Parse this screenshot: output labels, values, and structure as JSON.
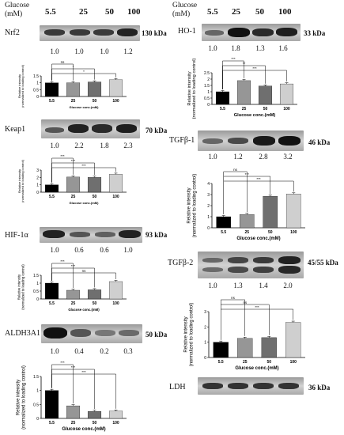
{
  "header": {
    "glucose_label": "Glucose",
    "unit_label": "(mM)",
    "concentrations": [
      "5.5",
      "25",
      "50",
      "100"
    ]
  },
  "blots": [
    {
      "name": "Nrf2",
      "mw": "130 kDa",
      "ratios": [
        "1.0",
        "1.0",
        "1.0",
        "1.2"
      ],
      "intensity": [
        1.0,
        1.0,
        1.0,
        1.2
      ]
    },
    {
      "name": "Keap1",
      "mw": "70 kDa",
      "ratios": [
        "1.0",
        "2.2",
        "1.8",
        "2.3"
      ],
      "intensity": [
        1.0,
        2.2,
        1.8,
        2.3
      ]
    },
    {
      "name": "HIF-1α",
      "mw": "93 kDa",
      "ratios": [
        "1.0",
        "0.6",
        "0.6",
        "1.0"
      ],
      "intensity": [
        1.0,
        0.6,
        0.6,
        1.0
      ]
    },
    {
      "name": "ALDH3A1",
      "mw": "50 kDa",
      "ratios": [
        "1.0",
        "0.4",
        "0.2",
        "0.3"
      ],
      "intensity": [
        1.0,
        0.4,
        0.2,
        0.3
      ]
    },
    {
      "name": "HO-1",
      "mw": "33 kDa",
      "ratios": [
        "1.0",
        "1.8",
        "1.3",
        "1.6"
      ],
      "intensity": [
        1.0,
        1.8,
        1.3,
        1.6
      ]
    },
    {
      "name": "TGFβ-1",
      "mw": "46 kDa",
      "ratios": [
        "1.0",
        "1.2",
        "2.8",
        "3.2"
      ],
      "intensity": [
        1.0,
        1.2,
        2.8,
        3.2
      ]
    },
    {
      "name": "TGFβ-2",
      "mw": "45/55 kDa",
      "ratios": [
        "1.0",
        "1.3",
        "1.4",
        "2.0"
      ],
      "intensity": [
        1.0,
        1.3,
        1.4,
        2.0
      ]
    },
    {
      "name": "LDH",
      "mw": "36 kDa",
      "ratios": [],
      "intensity": [
        1.0,
        1.0,
        1.0,
        1.0
      ]
    }
  ],
  "chart_data": [
    {
      "type": "bar",
      "panel": "Nrf2",
      "categories": [
        "5.5",
        "25",
        "50",
        "100"
      ],
      "values": [
        1.0,
        1.0,
        1.06,
        1.22
      ],
      "ylim": [
        0,
        1.5
      ],
      "yticks": [
        0,
        0.5,
        1,
        1.5
      ],
      "ylabel": "Relative intensity\n(normalized to loading control)",
      "xlabel": "Glucose conc.(mM)",
      "colors": [
        "#000000",
        "#969696",
        "#6f6f6f",
        "#cfcfcf"
      ],
      "significance": [
        {
          "from": 0,
          "to": 1,
          "label": "ns"
        },
        {
          "from": 0,
          "to": 2,
          "label": "*"
        },
        {
          "from": 0,
          "to": 3,
          "label": "*"
        }
      ]
    },
    {
      "type": "bar",
      "panel": "Keap1",
      "categories": [
        "5.5",
        "25",
        "50",
        "100"
      ],
      "values": [
        1.0,
        2.05,
        2.0,
        2.42
      ],
      "ylim": [
        0,
        3
      ],
      "yticks": [
        0,
        1,
        2,
        3
      ],
      "ylabel": "Relative intensity\n(normalized to loading control)",
      "xlabel": "Glucose conc.(mM)",
      "colors": [
        "#000000",
        "#969696",
        "#6f6f6f",
        "#cfcfcf"
      ],
      "significance": [
        {
          "from": 0,
          "to": 1,
          "label": "***"
        },
        {
          "from": 0,
          "to": 2,
          "label": "***"
        },
        {
          "from": 0,
          "to": 3,
          "label": "***"
        }
      ]
    },
    {
      "type": "bar",
      "panel": "HIF-1α",
      "categories": [
        "5.5",
        "25",
        "50",
        "100"
      ],
      "values": [
        1.0,
        0.55,
        0.58,
        1.1
      ],
      "ylim": [
        0,
        1.5
      ],
      "yticks": [
        0,
        0.5,
        1,
        1.5
      ],
      "ylabel": "Relative intensity\n(normalized to loading control)",
      "xlabel": "Glucose conc.(mM)",
      "colors": [
        "#000000",
        "#969696",
        "#6f6f6f",
        "#cfcfcf"
      ],
      "significance": [
        {
          "from": 0,
          "to": 1,
          "label": "***"
        },
        {
          "from": 0,
          "to": 2,
          "label": "***"
        },
        {
          "from": 0,
          "to": 3,
          "label": "ns"
        }
      ]
    },
    {
      "type": "bar",
      "panel": "ALDH3A1",
      "categories": [
        "5.5",
        "25",
        "50",
        "100"
      ],
      "values": [
        1.0,
        0.45,
        0.25,
        0.26
      ],
      "ylim": [
        0,
        1.5
      ],
      "yticks": [
        0,
        0.5,
        1,
        1.5
      ],
      "ylabel": "Relative intensity\n(normalized to loading control)",
      "xlabel": "Glucose conc.(mM)",
      "colors": [
        "#000000",
        "#969696",
        "#6f6f6f",
        "#cfcfcf"
      ],
      "significance": [
        {
          "from": 0,
          "to": 1,
          "label": "***"
        },
        {
          "from": 0,
          "to": 2,
          "label": "***"
        },
        {
          "from": 0,
          "to": 3,
          "label": "***"
        }
      ]
    },
    {
      "type": "bar",
      "panel": "HO-1",
      "categories": [
        "5.5",
        "25",
        "50",
        "100"
      ],
      "values": [
        1.0,
        1.88,
        1.45,
        1.62
      ],
      "ylim": [
        0,
        2.5
      ],
      "yticks": [
        0,
        0.5,
        1,
        1.5,
        2,
        2.5
      ],
      "ylabel": "Relative intensity\n(normalized to loading control)",
      "xlabel": "Glucose conc.(mM)",
      "colors": [
        "#000000",
        "#969696",
        "#6f6f6f",
        "#cfcfcf"
      ],
      "significance": [
        {
          "from": 0,
          "to": 1,
          "label": "***"
        },
        {
          "from": 0,
          "to": 2,
          "label": "**"
        },
        {
          "from": 0,
          "to": 3,
          "label": "***"
        }
      ]
    },
    {
      "type": "bar",
      "panel": "TGFβ-1",
      "categories": [
        "5.5",
        "25",
        "50",
        "100"
      ],
      "values": [
        1.0,
        1.2,
        2.85,
        3.05
      ],
      "ylim": [
        0,
        4
      ],
      "yticks": [
        0,
        1,
        2,
        3,
        4
      ],
      "ylabel": "Relative intensity\n(normalized to loading control)",
      "xlabel": "Glucose conc.(mM)",
      "colors": [
        "#000000",
        "#969696",
        "#6f6f6f",
        "#cfcfcf"
      ],
      "significance": [
        {
          "from": 0,
          "to": 1,
          "label": "ns"
        },
        {
          "from": 0,
          "to": 2,
          "label": "***"
        },
        {
          "from": 0,
          "to": 3,
          "label": "***"
        }
      ]
    },
    {
      "type": "bar",
      "panel": "TGFβ-2",
      "categories": [
        "5.5",
        "25",
        "50",
        "100"
      ],
      "values": [
        1.0,
        1.25,
        1.3,
        2.3
      ],
      "ylim": [
        0,
        3
      ],
      "yticks": [
        0,
        1,
        2,
        3
      ],
      "ylabel": "Relative intensity\n(normalized to loading control)",
      "xlabel": "Glucose conc.(mM)",
      "colors": [
        "#000000",
        "#969696",
        "#6f6f6f",
        "#cfcfcf"
      ],
      "significance": [
        {
          "from": 0,
          "to": 1,
          "label": "ns"
        },
        {
          "from": 0,
          "to": 2,
          "label": "ns"
        },
        {
          "from": 0,
          "to": 3,
          "label": "***"
        }
      ]
    }
  ]
}
